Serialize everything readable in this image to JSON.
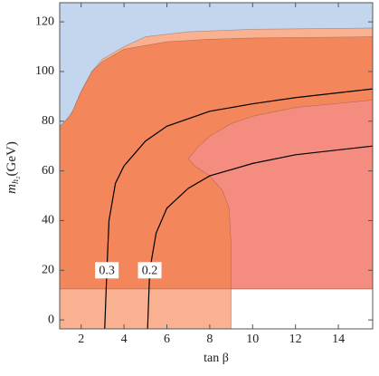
{
  "chart_data": {
    "type": "region",
    "xlabel": "tan β",
    "ylabel": {
      "symbol": "m",
      "subscript": "h₂",
      "unit": "(GeV)"
    },
    "xlim": [
      1,
      15.6
    ],
    "ylim": [
      -3.6,
      127.7
    ],
    "xticks": [
      2,
      4,
      6,
      8,
      10,
      12,
      14
    ],
    "yticks": [
      0,
      20,
      40,
      60,
      80,
      100,
      120
    ],
    "regions": [
      {
        "color": "#c3d6ee",
        "x": [
          1,
          15.6,
          15.6,
          1
        ],
        "y": [
          12.5,
          12.5,
          127.7,
          127.7
        ]
      },
      {
        "color": "#f9b191",
        "x": [
          1,
          1.6,
          2,
          2.5,
          3,
          4,
          5,
          7,
          10,
          15.6,
          15.6,
          1
        ],
        "y": [
          77,
          84,
          92,
          100,
          105,
          110,
          114,
          116,
          117,
          117.5,
          12.5,
          12.5
        ]
      },
      {
        "color": "#f9b191",
        "x": [
          1,
          9,
          9,
          1
        ],
        "y": [
          -3.6,
          -3.6,
          12.5,
          12.5
        ]
      },
      {
        "color": "#f4865c",
        "x": [
          1,
          1.5,
          2,
          2.5,
          3,
          4,
          6,
          8,
          10,
          15.6,
          15.6,
          1
        ],
        "y": [
          78,
          82,
          92,
          100,
          104,
          109,
          112,
          113,
          113.5,
          114,
          12.5,
          12.5
        ]
      },
      {
        "color": "#f58c80",
        "x": [
          7,
          7.5,
          8,
          9,
          10,
          12,
          15.6,
          15.6,
          9,
          9,
          8.9,
          8.6,
          8,
          7.3
        ],
        "y": [
          65,
          70,
          74,
          79,
          82,
          85.5,
          88.5,
          12.5,
          12.5,
          30,
          45,
          52,
          58,
          62
        ]
      }
    ],
    "series": [
      {
        "name": "0.3",
        "color": "#000000",
        "x": [
          3.1,
          3.2,
          3.3,
          3.6,
          4,
          5,
          6,
          8,
          10,
          12,
          15.6
        ],
        "values": [
          -3.6,
          20,
          40,
          55,
          62,
          72,
          78,
          84,
          87,
          89.5,
          93
        ]
      },
      {
        "name": "0.2",
        "color": "#000000",
        "x": [
          5.1,
          5.2,
          5.5,
          6,
          7,
          8,
          10,
          12,
          15.6
        ],
        "values": [
          -3.6,
          20,
          35,
          45,
          53,
          58,
          63,
          66.5,
          70
        ]
      }
    ]
  }
}
